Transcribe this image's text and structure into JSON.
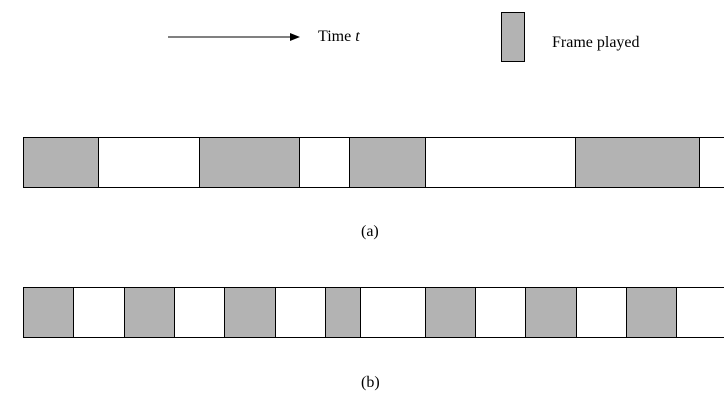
{
  "legend": {
    "time_label": "Time",
    "time_var": "t",
    "frame_label": "Frame played",
    "frame_color": "#b3b3b3"
  },
  "strips": [
    {
      "caption": "(a)",
      "segments": [
        {
          "played": true,
          "units": 75
        },
        {
          "played": false,
          "units": 101
        },
        {
          "played": true,
          "units": 100
        },
        {
          "played": false,
          "units": 50
        },
        {
          "played": true,
          "units": 76
        },
        {
          "played": false,
          "units": 150
        },
        {
          "played": true,
          "units": 124
        },
        {
          "played": false,
          "units": 20
        }
      ]
    },
    {
      "caption": "(b)",
      "segments": [
        {
          "played": true,
          "units": 50
        },
        {
          "played": false,
          "units": 51
        },
        {
          "played": true,
          "units": 50
        },
        {
          "played": false,
          "units": 50
        },
        {
          "played": true,
          "units": 51
        },
        {
          "played": false,
          "units": 50
        },
        {
          "played": true,
          "units": 35
        },
        {
          "played": false,
          "units": 65
        },
        {
          "played": true,
          "units": 50
        },
        {
          "played": false,
          "units": 50
        },
        {
          "played": true,
          "units": 51
        },
        {
          "played": false,
          "units": 50
        },
        {
          "played": true,
          "units": 50
        },
        {
          "played": false,
          "units": 43
        }
      ]
    }
  ]
}
